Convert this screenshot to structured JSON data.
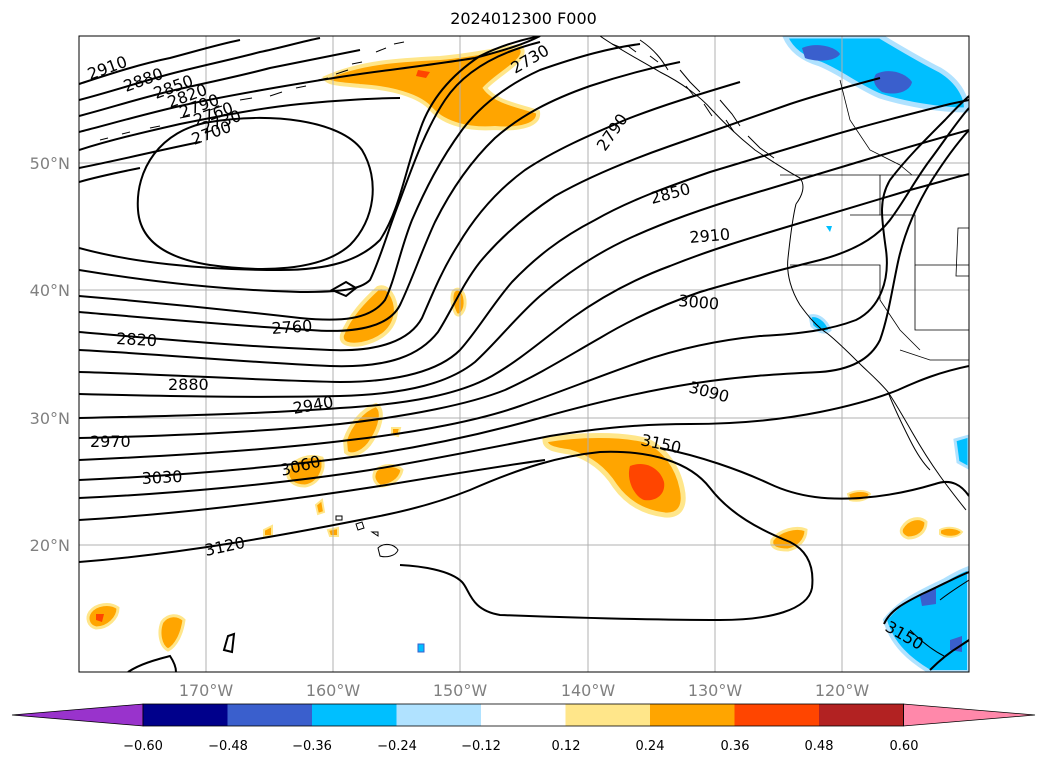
{
  "title": "2024012300 F000",
  "map": {
    "lat_labels": [
      "50°N",
      "40°N",
      "30°N",
      "20°N"
    ],
    "lon_labels": [
      "170°W",
      "160°W",
      "150°W",
      "140°W",
      "130°W",
      "120°W"
    ],
    "contour_labels": [
      "2910",
      "2880",
      "2850",
      "2820",
      "2790",
      "2760",
      "2730",
      "2700",
      "2730",
      "2790",
      "2850",
      "2910",
      "3000",
      "3090",
      "3150",
      "2760",
      "2820",
      "2880",
      "2940",
      "2970",
      "3030",
      "3060",
      "3120",
      "3150"
    ]
  },
  "colorbar": {
    "colors": [
      "#9933cc",
      "#00008b",
      "#3a5fcd",
      "#00bfff",
      "#b0e2ff",
      "#ffffff",
      "#ffe68a",
      "#ffa500",
      "#ff4500",
      "#b22222",
      "#ff88aa"
    ],
    "ticks": [
      "−0.60",
      "−0.48",
      "−0.36",
      "−0.24",
      "−0.12",
      "0.12",
      "0.24",
      "0.36",
      "0.48",
      "0.60"
    ]
  }
}
